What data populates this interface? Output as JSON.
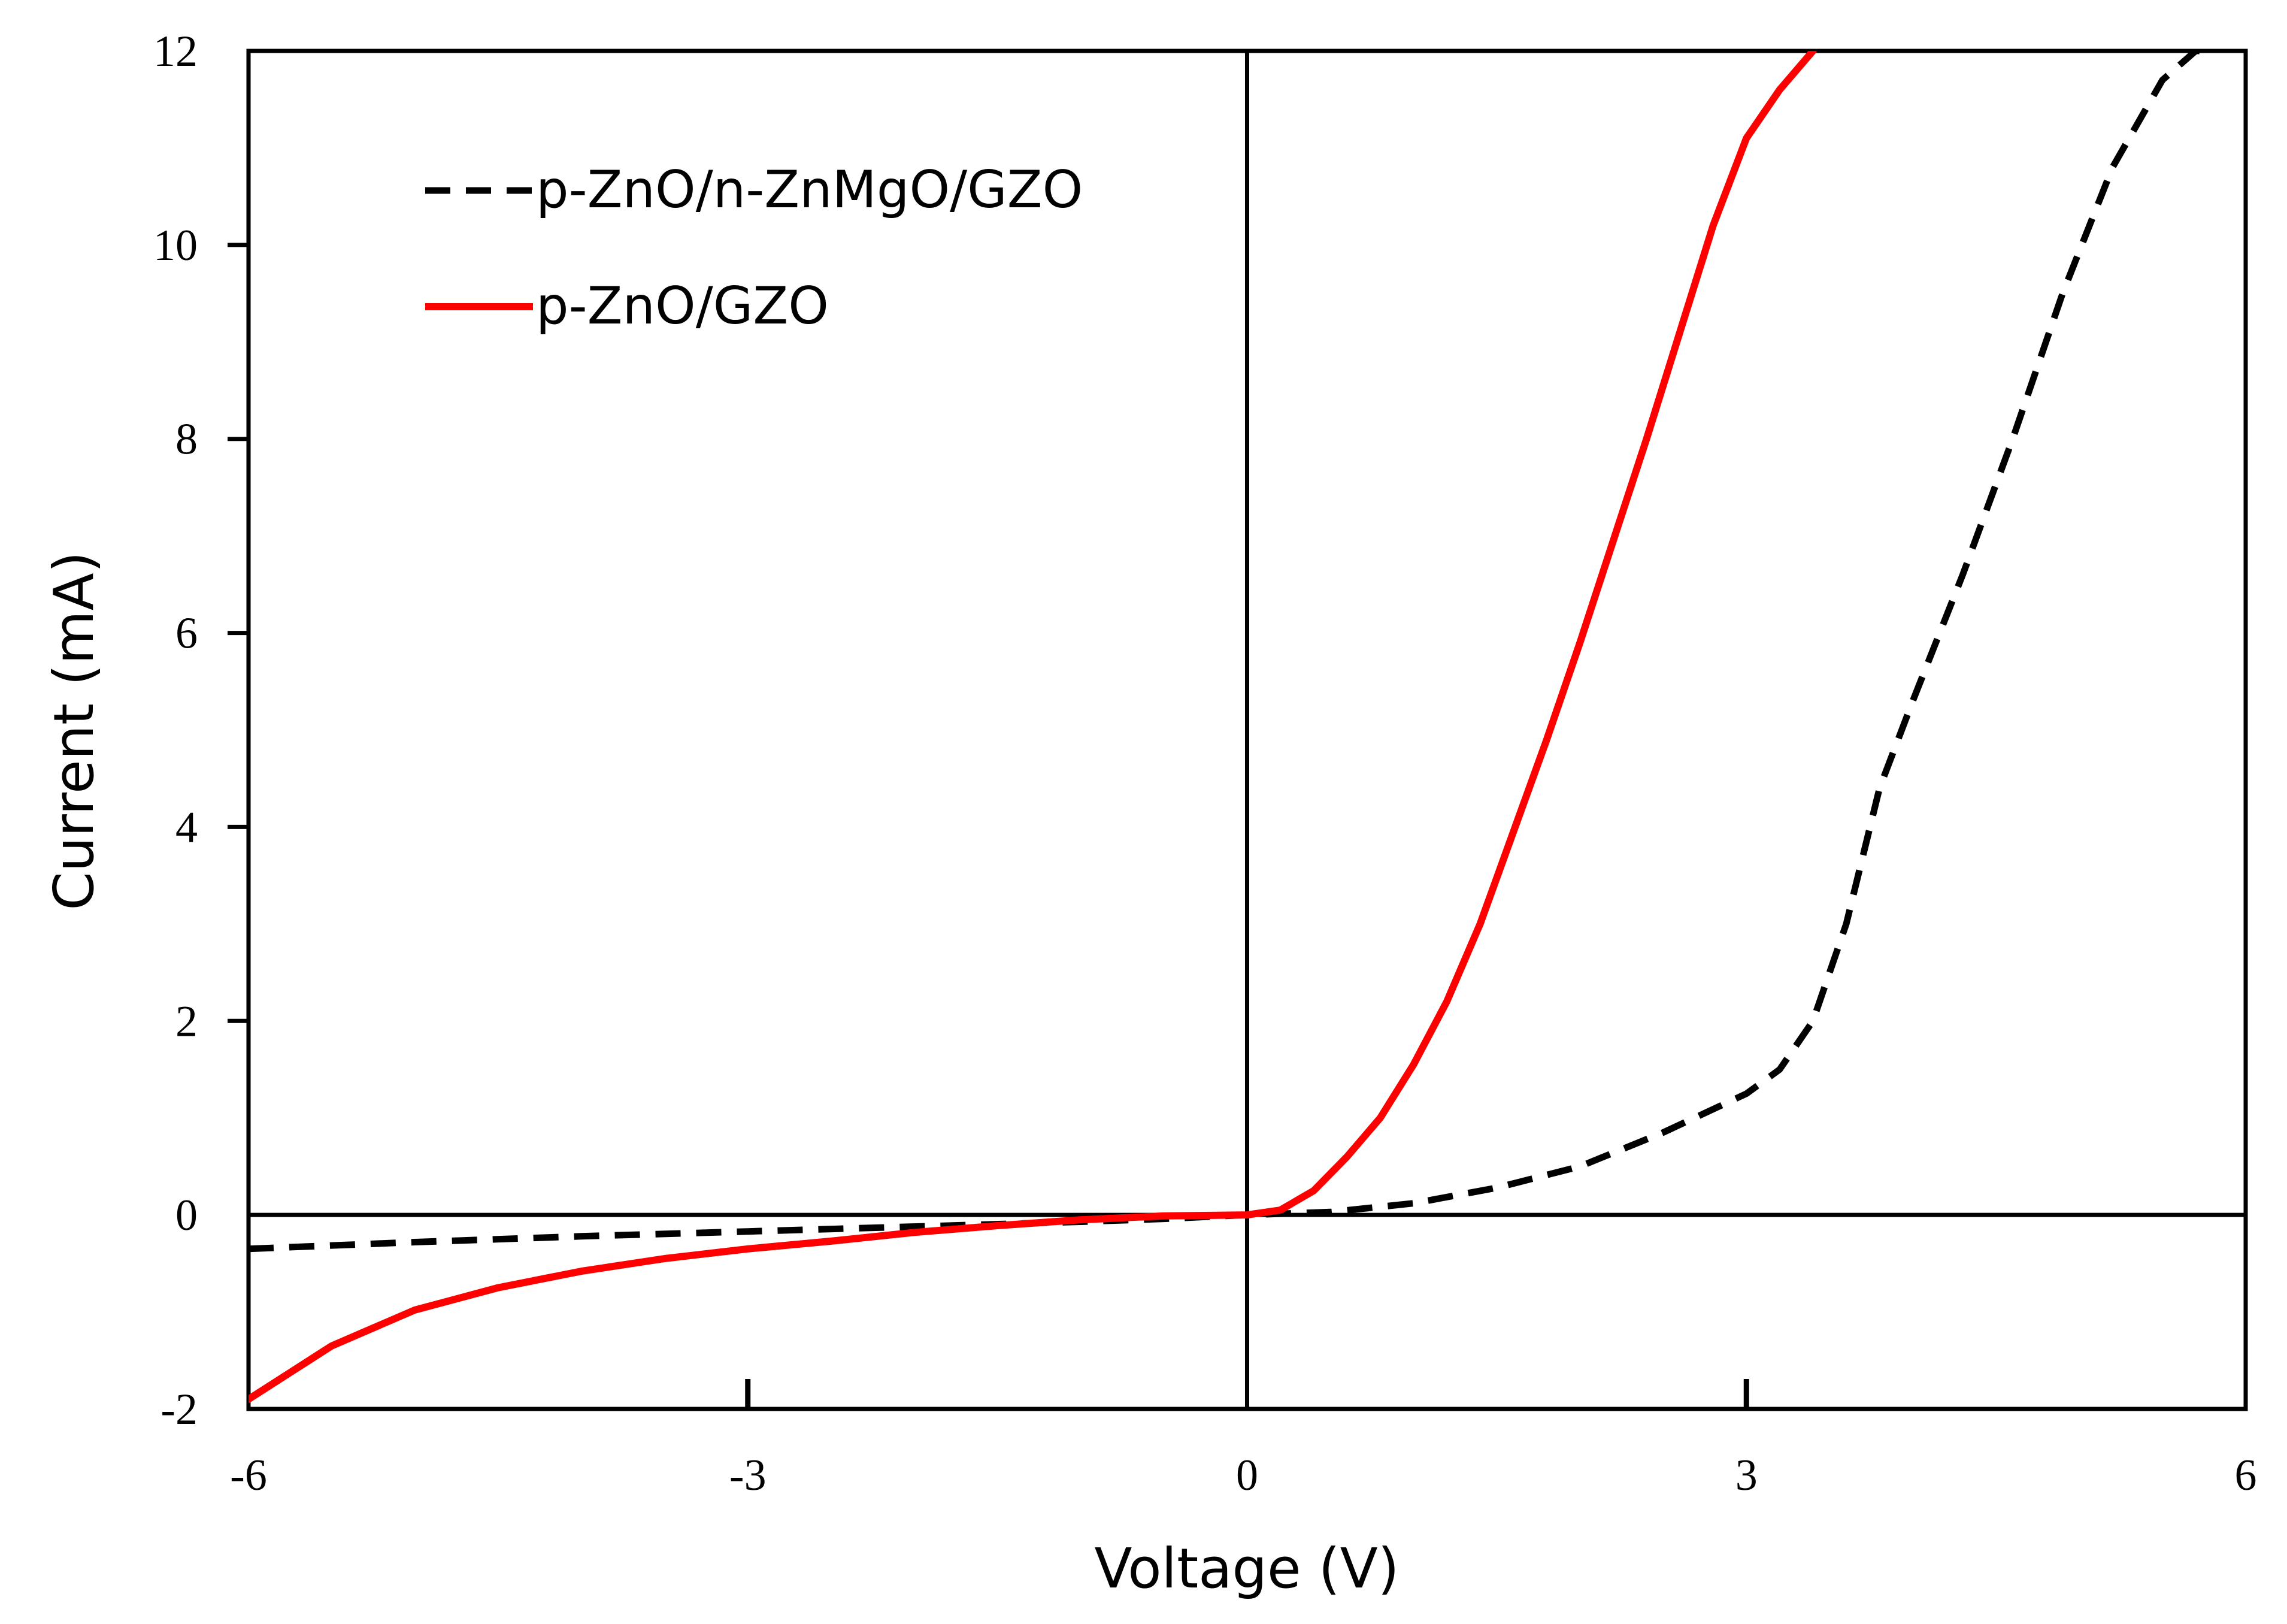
{
  "chart_data": {
    "type": "line",
    "title": "",
    "xlabel": "Voltage (V)",
    "ylabel": "Current (mA)",
    "xlim": [
      -6,
      6
    ],
    "ylim": [
      -2,
      12
    ],
    "x_ticks": [
      -6,
      -3,
      0,
      3,
      6
    ],
    "y_ticks": [
      -2,
      0,
      2,
      4,
      6,
      8,
      10,
      12
    ],
    "x_tick_labels": [
      "-6",
      "-3",
      "0",
      "3",
      "6"
    ],
    "y_tick_labels": [
      "-2",
      "0",
      "2",
      "4",
      "6",
      "8",
      "10",
      "12"
    ],
    "grid": false,
    "legend_position": "top-left",
    "series": [
      {
        "name": "p-ZnO/n-ZnMgO/GZO",
        "color": "#000000",
        "style": "dashed",
        "x": [
          -6,
          -5,
          -4,
          -3,
          -2,
          -1,
          -0.5,
          0,
          0.5,
          1,
          1.5,
          2,
          2.5,
          3,
          3.2,
          3.4,
          3.6,
          3.8,
          4.0,
          4.3,
          4.6,
          4.9,
          5.2,
          5.5,
          5.7,
          5.8
        ],
        "y": [
          -0.35,
          -0.28,
          -0.22,
          -0.17,
          -0.12,
          -0.07,
          -0.04,
          0,
          0.03,
          0.12,
          0.28,
          0.5,
          0.85,
          1.25,
          1.5,
          2.0,
          3.0,
          4.4,
          5.3,
          6.6,
          8.0,
          9.5,
          10.8,
          11.7,
          12.0,
          12.0
        ]
      },
      {
        "name": "p-ZnO/GZO",
        "color": "#ff0000",
        "style": "solid",
        "x": [
          -6,
          -5.5,
          -5,
          -4.5,
          -4,
          -3.5,
          -3,
          -2.5,
          -2,
          -1.5,
          -1,
          -0.5,
          0,
          0.2,
          0.4,
          0.6,
          0.8,
          1.0,
          1.2,
          1.4,
          1.6,
          1.8,
          2.0,
          2.2,
          2.4,
          2.6,
          2.8,
          3.0,
          3.2,
          3.4
        ],
        "y": [
          -1.9,
          -1.35,
          -0.98,
          -0.75,
          -0.58,
          -0.45,
          -0.35,
          -0.27,
          -0.18,
          -0.11,
          -0.05,
          -0.01,
          0,
          0.05,
          0.25,
          0.6,
          1.0,
          1.55,
          2.2,
          3.0,
          3.95,
          4.9,
          5.9,
          6.95,
          8.0,
          9.1,
          10.2,
          11.1,
          11.6,
          12.0
        ]
      }
    ]
  }
}
